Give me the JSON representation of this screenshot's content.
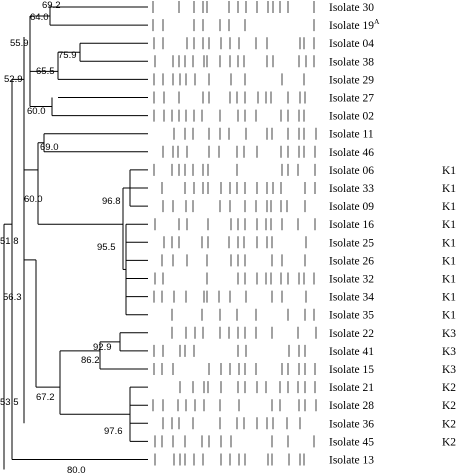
{
  "figure": {
    "isolates": [
      {
        "label": "Isolate 30",
        "cluster": ""
      },
      {
        "label": "Isolate 19",
        "sup": "A",
        "cluster": ""
      },
      {
        "label": "Isolate 04",
        "cluster": ""
      },
      {
        "label": "Isolate 38",
        "cluster": ""
      },
      {
        "label": "Isolate 29",
        "cluster": ""
      },
      {
        "label": "Isolate 27",
        "cluster": ""
      },
      {
        "label": "Isolate 02",
        "cluster": ""
      },
      {
        "label": "Isolate 11",
        "cluster": ""
      },
      {
        "label": "Isolate 46",
        "cluster": ""
      },
      {
        "label": "Isolate 06",
        "cluster": "K1"
      },
      {
        "label": "Isolate 33",
        "cluster": "K1"
      },
      {
        "label": "Isolate 09",
        "cluster": "K1"
      },
      {
        "label": "Isolate 16",
        "cluster": "K1"
      },
      {
        "label": "Isolate 25",
        "cluster": "K1"
      },
      {
        "label": "Isolate 26",
        "cluster": "K1"
      },
      {
        "label": "Isolate 32",
        "cluster": "K1"
      },
      {
        "label": "Isolate 34",
        "cluster": "K1"
      },
      {
        "label": "Isolate 35",
        "cluster": "K1"
      },
      {
        "label": "Isolate 22",
        "cluster": "K3"
      },
      {
        "label": "Isolate 41",
        "cluster": "K3"
      },
      {
        "label": "Isolate 15",
        "cluster": "K3"
      },
      {
        "label": "Isolate 21",
        "cluster": "K2"
      },
      {
        "label": "Isolate 28",
        "cluster": "K2"
      },
      {
        "label": "Isolate 36",
        "cluster": "K2"
      },
      {
        "label": "Isolate 45",
        "cluster": "K2"
      },
      {
        "label": "Isolate 13",
        "cluster": ""
      }
    ],
    "node_values": [
      "69.2",
      "64.0",
      "55.9",
      "75.9",
      "65.5",
      "52.9",
      "60.0",
      "69.0",
      "60.0",
      "96.8",
      "51.8",
      "95.5",
      "56.3",
      "92.9",
      "86.2",
      "67.2",
      "97.6",
      "53.5",
      "80.0"
    ]
  }
}
